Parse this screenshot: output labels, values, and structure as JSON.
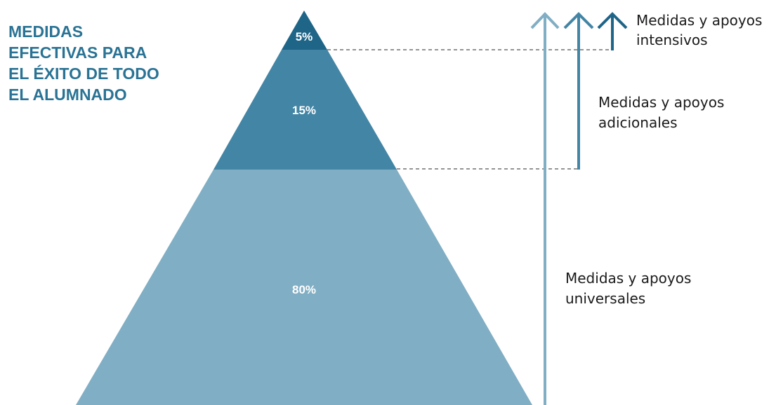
{
  "title": {
    "lines": [
      "MEDIDAS",
      "EFECTIVAS PARA",
      "EL ÉXITO DE TODO",
      "EL ALUMNADO"
    ],
    "color": "#2a7394"
  },
  "pyramid": {
    "tiers": [
      {
        "name": "tier-top",
        "percent_label": "5%",
        "color": "#1e6588"
      },
      {
        "name": "tier-middle",
        "percent_label": "15%",
        "color": "#4385a5"
      },
      {
        "name": "tier-base",
        "percent_label": "80%",
        "color": "#80aec4"
      }
    ]
  },
  "levels": {
    "intensive": {
      "line1": "Medidas y apoyos",
      "line2": "intensivos",
      "arrow_color": "#1e6588"
    },
    "additional": {
      "line1": "Medidas y apoyos",
      "line2": "adicionales",
      "arrow_color": "#4385a5"
    },
    "universal": {
      "line1": "Medidas y apoyos",
      "line2": "universales",
      "arrow_color": "#80aec4"
    }
  },
  "dash_color": "#555555"
}
